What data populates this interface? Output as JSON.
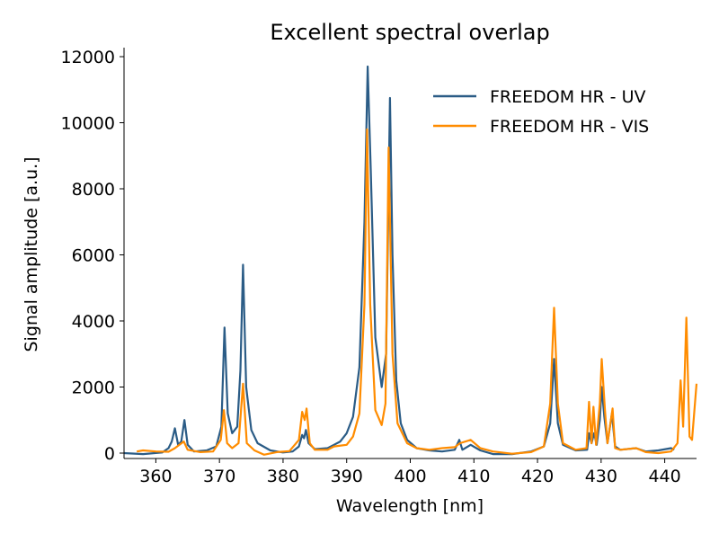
{
  "chart_data": {
    "type": "line",
    "title": "Excellent spectral overlap",
    "xlabel": "Wavelength [nm]",
    "ylabel": "Signal amplitude [a.u.]",
    "xlim": [
      355,
      445
    ],
    "ylim": [
      -150,
      12300
    ],
    "xticks": [
      360,
      370,
      380,
      390,
      400,
      410,
      420,
      430,
      440
    ],
    "yticks": [
      0,
      2000,
      4000,
      6000,
      8000,
      10000,
      12000
    ],
    "grid": false,
    "legend_position": "top-right",
    "series": [
      {
        "name": "FREEDOM HR - UV",
        "color": "#2b5c86",
        "points": [
          [
            355,
            0
          ],
          [
            358,
            -30
          ],
          [
            361,
            20
          ],
          [
            362,
            150
          ],
          [
            362.5,
            350
          ],
          [
            363,
            750
          ],
          [
            363.5,
            250
          ],
          [
            364,
            350
          ],
          [
            364.5,
            1000
          ],
          [
            365,
            250
          ],
          [
            366,
            50
          ],
          [
            368,
            80
          ],
          [
            369.5,
            200
          ],
          [
            370.3,
            800
          ],
          [
            370.8,
            3800
          ],
          [
            371.3,
            1200
          ],
          [
            372,
            600
          ],
          [
            372.8,
            800
          ],
          [
            373.3,
            2500
          ],
          [
            373.7,
            5700
          ],
          [
            374.2,
            2000
          ],
          [
            375,
            700
          ],
          [
            376,
            300
          ],
          [
            378,
            80
          ],
          [
            380,
            20
          ],
          [
            381.5,
            50
          ],
          [
            382.5,
            200
          ],
          [
            383,
            550
          ],
          [
            383.3,
            450
          ],
          [
            383.6,
            700
          ],
          [
            384,
            300
          ],
          [
            385,
            120
          ],
          [
            387,
            150
          ],
          [
            388,
            250
          ],
          [
            389,
            350
          ],
          [
            390,
            600
          ],
          [
            391,
            1100
          ],
          [
            392,
            2600
          ],
          [
            392.8,
            7000
          ],
          [
            393.3,
            11700
          ],
          [
            393.8,
            8500
          ],
          [
            394.5,
            3500
          ],
          [
            395.5,
            2000
          ],
          [
            396.2,
            3000
          ],
          [
            396.6,
            8000
          ],
          [
            396.8,
            10750
          ],
          [
            397.2,
            6000
          ],
          [
            397.8,
            2200
          ],
          [
            398.5,
            900
          ],
          [
            399.5,
            400
          ],
          [
            401,
            150
          ],
          [
            403,
            80
          ],
          [
            405,
            50
          ],
          [
            407,
            100
          ],
          [
            407.7,
            400
          ],
          [
            408.2,
            100
          ],
          [
            409.5,
            250
          ],
          [
            411,
            80
          ],
          [
            413,
            -30
          ],
          [
            416,
            -30
          ],
          [
            419,
            50
          ],
          [
            421,
            200
          ],
          [
            422,
            900
          ],
          [
            422.6,
            2850
          ],
          [
            423.2,
            900
          ],
          [
            424,
            250
          ],
          [
            426,
            80
          ],
          [
            427.8,
            100
          ],
          [
            428.1,
            600
          ],
          [
            428.5,
            300
          ],
          [
            428.9,
            600
          ],
          [
            429.3,
            250
          ],
          [
            429.8,
            1000
          ],
          [
            430.1,
            2000
          ],
          [
            430.5,
            1100
          ],
          [
            431,
            300
          ],
          [
            431.7,
            1200
          ],
          [
            432.2,
            200
          ],
          [
            433,
            100
          ],
          [
            435.5,
            150
          ],
          [
            437,
            50
          ],
          [
            439,
            80
          ],
          [
            441,
            150
          ],
          [
            441.5,
            100
          ]
        ]
      },
      {
        "name": "FREEDOM HR - VIS",
        "color": "#ff8c00",
        "points": [
          [
            357,
            50
          ],
          [
            358,
            80
          ],
          [
            360,
            50
          ],
          [
            362,
            40
          ],
          [
            363,
            150
          ],
          [
            364.4,
            350
          ],
          [
            365,
            100
          ],
          [
            367,
            30
          ],
          [
            369,
            50
          ],
          [
            370.2,
            400
          ],
          [
            370.7,
            1300
          ],
          [
            371.2,
            300
          ],
          [
            372,
            150
          ],
          [
            373,
            300
          ],
          [
            373.7,
            2100
          ],
          [
            374.3,
            300
          ],
          [
            375.5,
            80
          ],
          [
            377,
            -50
          ],
          [
            379,
            30
          ],
          [
            381,
            60
          ],
          [
            382.5,
            400
          ],
          [
            383,
            1250
          ],
          [
            383.4,
            1000
          ],
          [
            383.7,
            1350
          ],
          [
            384.2,
            300
          ],
          [
            385,
            100
          ],
          [
            387,
            100
          ],
          [
            388,
            200
          ],
          [
            390,
            250
          ],
          [
            391,
            500
          ],
          [
            392,
            1200
          ],
          [
            392.8,
            4500
          ],
          [
            393.2,
            9800
          ],
          [
            393.7,
            4500
          ],
          [
            394.5,
            1300
          ],
          [
            395.5,
            850
          ],
          [
            396.1,
            1500
          ],
          [
            396.6,
            9250
          ],
          [
            397.2,
            3000
          ],
          [
            398,
            900
          ],
          [
            399.5,
            300
          ],
          [
            401,
            150
          ],
          [
            403,
            100
          ],
          [
            405,
            150
          ],
          [
            407,
            180
          ],
          [
            407.8,
            300
          ],
          [
            409.5,
            400
          ],
          [
            411,
            150
          ],
          [
            413,
            50
          ],
          [
            416,
            -20
          ],
          [
            419,
            30
          ],
          [
            421,
            200
          ],
          [
            422,
            1500
          ],
          [
            422.6,
            4400
          ],
          [
            423.2,
            1500
          ],
          [
            424,
            300
          ],
          [
            426,
            100
          ],
          [
            427.7,
            150
          ],
          [
            428.1,
            1550
          ],
          [
            428.5,
            300
          ],
          [
            428.8,
            1400
          ],
          [
            429.2,
            250
          ],
          [
            429.8,
            1500
          ],
          [
            430.1,
            2850
          ],
          [
            430.6,
            1300
          ],
          [
            431,
            300
          ],
          [
            431.8,
            1350
          ],
          [
            432.2,
            150
          ],
          [
            433,
            100
          ],
          [
            435.5,
            150
          ],
          [
            437,
            30
          ],
          [
            439,
            0
          ],
          [
            441,
            50
          ],
          [
            442,
            300
          ],
          [
            442.5,
            2200
          ],
          [
            442.9,
            800
          ],
          [
            443.4,
            4100
          ],
          [
            443.9,
            500
          ],
          [
            444.3,
            400
          ],
          [
            445,
            2100
          ]
        ]
      }
    ]
  }
}
